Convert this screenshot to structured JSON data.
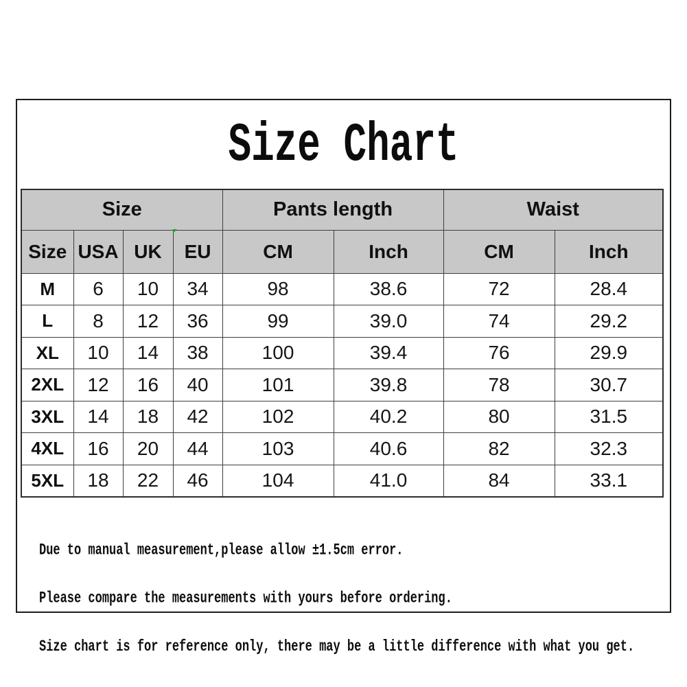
{
  "title": "Size Chart",
  "colors": {
    "header_bg": "#c8c8c8",
    "border_color": "#3e3e3e",
    "frame_border": "#1b1b1b",
    "eu_flag_green": "#19a519"
  },
  "chart_data": {
    "type": "table",
    "title": "Size Chart",
    "group_headers": [
      {
        "label": "Size",
        "colspan": 4
      },
      {
        "label": "Pants length",
        "colspan": 2
      },
      {
        "label": "Waist",
        "colspan": 2
      }
    ],
    "column_headers": [
      "Size",
      "USA",
      "UK",
      "EU",
      "CM",
      "Inch",
      "CM",
      "Inch"
    ],
    "rows": [
      [
        "M",
        "6",
        "10",
        "34",
        "98",
        "38.6",
        "72",
        "28.4"
      ],
      [
        "L",
        "8",
        "12",
        "36",
        "99",
        "39.0",
        "74",
        "29.2"
      ],
      [
        "XL",
        "10",
        "14",
        "38",
        "100",
        "39.4",
        "76",
        "29.9"
      ],
      [
        "2XL",
        "12",
        "16",
        "40",
        "101",
        "39.8",
        "78",
        "30.7"
      ],
      [
        "3XL",
        "14",
        "18",
        "42",
        "102",
        "40.2",
        "80",
        "31.5"
      ],
      [
        "4XL",
        "16",
        "20",
        "44",
        "103",
        "40.6",
        "82",
        "32.3"
      ],
      [
        "5XL",
        "18",
        "22",
        "46",
        "104",
        "41.0",
        "84",
        "33.1"
      ]
    ],
    "header_bg": "#c8c8c8",
    "border_color": "#3e3e3e",
    "legend_position": "none",
    "grid": true
  },
  "notes": [
    "Due to manual measurement,please allow ±1.5cm error.",
    "Please compare the measurements with yours before ordering.",
    "Size chart is for reference only, there may be a little difference with what you get."
  ]
}
